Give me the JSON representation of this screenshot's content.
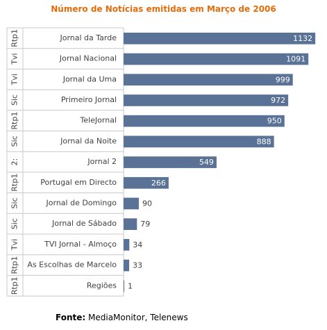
{
  "source": {
    "label": "Fonte:",
    "text": "MediaMonitor, Telenews"
  },
  "chart_data": {
    "type": "bar",
    "orientation": "horizontal",
    "title": "Número de Notícias emitidas em Março de 2006",
    "categories": [
      "Jornal da Tarde",
      "Jornal Nacional",
      "Jornal da Uma",
      "Primeiro Jornal",
      "TeleJornal",
      "Jornal da Noite",
      "Jornal 2",
      "Portugal em Directo",
      "Jornal de Domingo",
      "Jornal de Sábado",
      "TVI Jornal - Almoço",
      "As Escolhas de Marcelo",
      "Regiões"
    ],
    "groups": [
      "Rtp1",
      "Tvi",
      "Tvi",
      "Sic",
      "Rtp1",
      "Sic",
      "2:",
      "Rtp1",
      "Sic",
      "Sic",
      "Tvi",
      "Rtp1",
      "Rtp1"
    ],
    "values": [
      1132,
      1091,
      999,
      972,
      950,
      888,
      549,
      266,
      90,
      79,
      34,
      33,
      1
    ],
    "xlim": [
      0,
      1160
    ],
    "colors": {
      "bar": "#5a7295",
      "label_inside": "#ffffff",
      "label_outside": "#404040",
      "grid": "#c8c8c8",
      "title": "#e46c0a"
    },
    "legend": "none",
    "grid": true
  }
}
